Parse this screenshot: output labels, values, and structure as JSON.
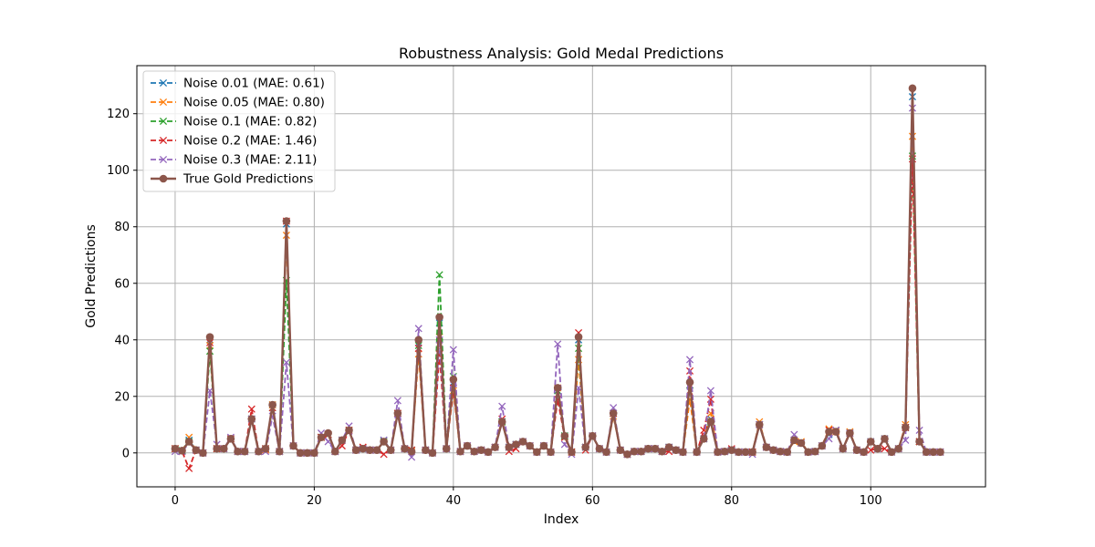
{
  "chart_data": {
    "type": "line",
    "title": "Robustness Analysis: Gold Medal Predictions",
    "xlabel": "Index",
    "ylabel": "Gold Predictions",
    "xlim": [
      -5.5,
      116.5
    ],
    "ylim": [
      -12,
      137
    ],
    "xticks": [
      0,
      20,
      40,
      60,
      80,
      100
    ],
    "yticks": [
      0,
      20,
      40,
      60,
      80,
      100,
      120
    ],
    "grid": true,
    "legend_position": "upper-left",
    "series": [
      {
        "name": "Noise 0.01 (MAE: 0.61)",
        "color": "#1f77b4",
        "style": "dashed",
        "marker": "x",
        "y": [
          1.5,
          0.8,
          4.5,
          1,
          0,
          40,
          1.5,
          1.5,
          5,
          0.5,
          0.5,
          12,
          0.5,
          1.5,
          17,
          0.5,
          81,
          2.5,
          0,
          0,
          0,
          5.5,
          6.5,
          0.5,
          4.5,
          8,
          1,
          1.5,
          1,
          1,
          4.5,
          1,
          14,
          1.5,
          1,
          39,
          1,
          0,
          46,
          1.5,
          25,
          0.5,
          2.5,
          0.5,
          1,
          0.3,
          2,
          11,
          2,
          3,
          4,
          2.5,
          0.3,
          2.5,
          0.3,
          22,
          6,
          0.3,
          40,
          2,
          6,
          1.5,
          0.3,
          14,
          1,
          -0.5,
          0.5,
          0.5,
          1.5,
          1.5,
          0.5,
          2,
          1,
          0.3,
          24,
          0.3,
          5,
          12,
          0.3,
          0.5,
          1,
          0.3,
          0.3,
          0.3,
          10,
          2,
          1,
          0.5,
          0.3,
          4.5,
          3.5,
          0.3,
          0.5,
          2.5,
          6.5,
          8,
          1.5,
          7,
          1,
          0.3,
          4,
          1.5,
          5,
          0.3,
          1.5,
          9,
          126,
          4,
          0.3,
          0.3,
          0.3
        ]
      },
      {
        "name": "Noise 0.05 (MAE: 0.80)",
        "color": "#ff7f0e",
        "style": "dashed",
        "marker": "x",
        "y": [
          1.5,
          0.5,
          5.5,
          1,
          0,
          38,
          1.5,
          1.5,
          5,
          0.5,
          0.5,
          12,
          0.5,
          1,
          17,
          0.5,
          77,
          2.5,
          0,
          0,
          0,
          5.5,
          6.5,
          0.5,
          4.5,
          8,
          1,
          2,
          1,
          1,
          4,
          1,
          14,
          1.5,
          0.5,
          35,
          1,
          0,
          41,
          1.5,
          22,
          0.5,
          2.5,
          0.5,
          1,
          0.3,
          2,
          11,
          2,
          3,
          4,
          2.5,
          0.3,
          2.5,
          0.3,
          23,
          5.5,
          0.3,
          33,
          2,
          6,
          1.5,
          0.3,
          13,
          1,
          -0.5,
          0.5,
          0.5,
          1.5,
          1.5,
          0.5,
          2,
          1,
          0.3,
          19,
          0.3,
          5,
          14,
          0.3,
          0.5,
          1,
          0.3,
          0.3,
          0.3,
          11,
          2,
          1,
          0.5,
          0.3,
          4,
          4,
          0.3,
          0.5,
          2.5,
          8.5,
          7.5,
          1.5,
          7.5,
          1,
          0.3,
          4,
          1.5,
          5,
          0.3,
          1.5,
          10,
          112,
          4,
          0.3,
          0.3,
          0.3
        ]
      },
      {
        "name": "Noise 0.1 (MAE: 0.82)",
        "color": "#2ca02c",
        "style": "dashed",
        "marker": "x",
        "y": [
          1.5,
          0.8,
          4,
          1,
          0,
          36,
          1.5,
          1.5,
          5,
          0.5,
          0.5,
          12,
          0.5,
          1.5,
          16,
          0.5,
          61,
          2.5,
          0,
          0,
          0,
          5.5,
          6.5,
          0.5,
          4.5,
          8,
          1,
          1.5,
          1,
          1,
          4,
          1,
          14,
          1.5,
          1,
          38,
          1,
          0,
          63,
          1.5,
          27,
          0.5,
          2.5,
          0.5,
          1,
          0.3,
          2,
          11,
          2,
          3,
          4,
          2.5,
          0.3,
          2.5,
          0.3,
          22,
          6,
          0.3,
          37,
          2,
          6,
          1.5,
          0.3,
          14,
          1,
          -0.5,
          0.5,
          0.5,
          1.5,
          1.5,
          0.5,
          2,
          1,
          0.3,
          24,
          0.3,
          5,
          11,
          0.3,
          0.5,
          1,
          0.3,
          0.3,
          0.3,
          10,
          2,
          1,
          0.5,
          0.3,
          4.5,
          3.5,
          0.3,
          0.5,
          2.5,
          7,
          8,
          1.5,
          7,
          1,
          0.3,
          4,
          1.5,
          5,
          0.3,
          1.5,
          9,
          105,
          4,
          0.3,
          0.3,
          0.3
        ]
      },
      {
        "name": "Noise 0.2 (MAE: 1.46)",
        "color": "#d62728",
        "style": "dashed",
        "marker": "x",
        "y": [
          1.5,
          0.5,
          -5.5,
          1,
          0,
          39,
          1.5,
          1.5,
          5,
          0.5,
          0.5,
          15.5,
          0.5,
          1.5,
          16,
          0.5,
          82,
          2.5,
          0,
          0,
          0,
          5.5,
          6.5,
          0.5,
          2.5,
          8,
          1,
          2,
          1,
          1,
          -0.5,
          1,
          14,
          1.5,
          1,
          37,
          1,
          0,
          35,
          1.5,
          23,
          0.5,
          2.5,
          0.5,
          1,
          0.3,
          2,
          12,
          0.5,
          1.5,
          4,
          2.5,
          0.3,
          2.5,
          0.3,
          19,
          5.5,
          0.3,
          42.5,
          1,
          6,
          1.5,
          0.3,
          14,
          1,
          -0.5,
          0.5,
          0.5,
          1.5,
          1.5,
          0.5,
          0.5,
          1,
          0.3,
          29,
          0.3,
          8,
          19,
          0.3,
          0.5,
          1.5,
          0.3,
          0.3,
          0.3,
          10,
          2,
          1,
          0.5,
          0.3,
          4.5,
          3.5,
          0.3,
          0.5,
          2.5,
          8,
          8,
          1.5,
          7,
          1,
          0.3,
          1,
          1.5,
          1.5,
          0.3,
          1.5,
          9,
          104,
          4,
          0.3,
          0.3,
          0.3
        ]
      },
      {
        "name": "Noise 0.3 (MAE: 2.11)",
        "color": "#9467bd",
        "style": "dashed",
        "marker": "x",
        "y": [
          0.5,
          0.5,
          3.5,
          1,
          0,
          22,
          3,
          1.5,
          5.5,
          0.5,
          0.5,
          12,
          0.5,
          0.5,
          13,
          0.5,
          32,
          2.5,
          0,
          0,
          0,
          7,
          4,
          0.5,
          4.5,
          9.5,
          1,
          1.5,
          1,
          1,
          4.5,
          1,
          18.5,
          1.5,
          -1.5,
          44,
          1,
          0,
          40,
          1.5,
          36.5,
          0.5,
          2.5,
          0.5,
          1,
          0.3,
          2,
          16.5,
          2,
          3,
          4,
          2.5,
          0.3,
          2.5,
          0.3,
          38.5,
          3,
          -0.5,
          23,
          2,
          6,
          1.5,
          0.3,
          16,
          1,
          -0.5,
          0.5,
          0.5,
          1.5,
          1.5,
          0.5,
          2,
          1,
          0.3,
          33,
          0.3,
          5,
          22,
          0.3,
          0.5,
          1,
          0.3,
          0.3,
          -0.5,
          10,
          2,
          1,
          0.5,
          0.3,
          6.5,
          3.5,
          0.3,
          0.5,
          2.5,
          5,
          8,
          1.5,
          7,
          1,
          0.3,
          4,
          1.5,
          5,
          0.3,
          1.5,
          4.5,
          122,
          8,
          0.3,
          0.3,
          0.3
        ]
      },
      {
        "name": "True Gold Predictions",
        "color": "#8c564b",
        "style": "solid",
        "marker": "o",
        "y": [
          1.5,
          0.8,
          4,
          1,
          0,
          41,
          1.5,
          1.5,
          5,
          0.5,
          0.5,
          12,
          0.5,
          1.5,
          17,
          0.5,
          82,
          2.5,
          0,
          0,
          0,
          5.5,
          7,
          0.5,
          4.5,
          8,
          1,
          1.5,
          1,
          1,
          4,
          1,
          14,
          1.5,
          0.5,
          40,
          1,
          0,
          48,
          1.5,
          26,
          0.5,
          2.5,
          0.5,
          1,
          0.3,
          2,
          11,
          2,
          3,
          4,
          2.5,
          0.3,
          2.5,
          0.3,
          23,
          6,
          0.3,
          41,
          2,
          6,
          1.5,
          0.3,
          14,
          1,
          -0.5,
          0.5,
          0.5,
          1.5,
          1.5,
          0.5,
          2,
          1,
          0.3,
          25,
          0.3,
          5,
          11,
          0.3,
          0.5,
          1,
          0.3,
          0.3,
          0.3,
          10,
          2,
          1,
          0.5,
          0.3,
          4.5,
          3.5,
          0.3,
          0.5,
          2.5,
          7.5,
          7.5,
          1.5,
          7,
          1,
          0.3,
          4,
          1.5,
          5,
          0.3,
          1.5,
          9,
          129,
          4,
          0.3,
          0.3,
          0.3
        ]
      }
    ]
  }
}
